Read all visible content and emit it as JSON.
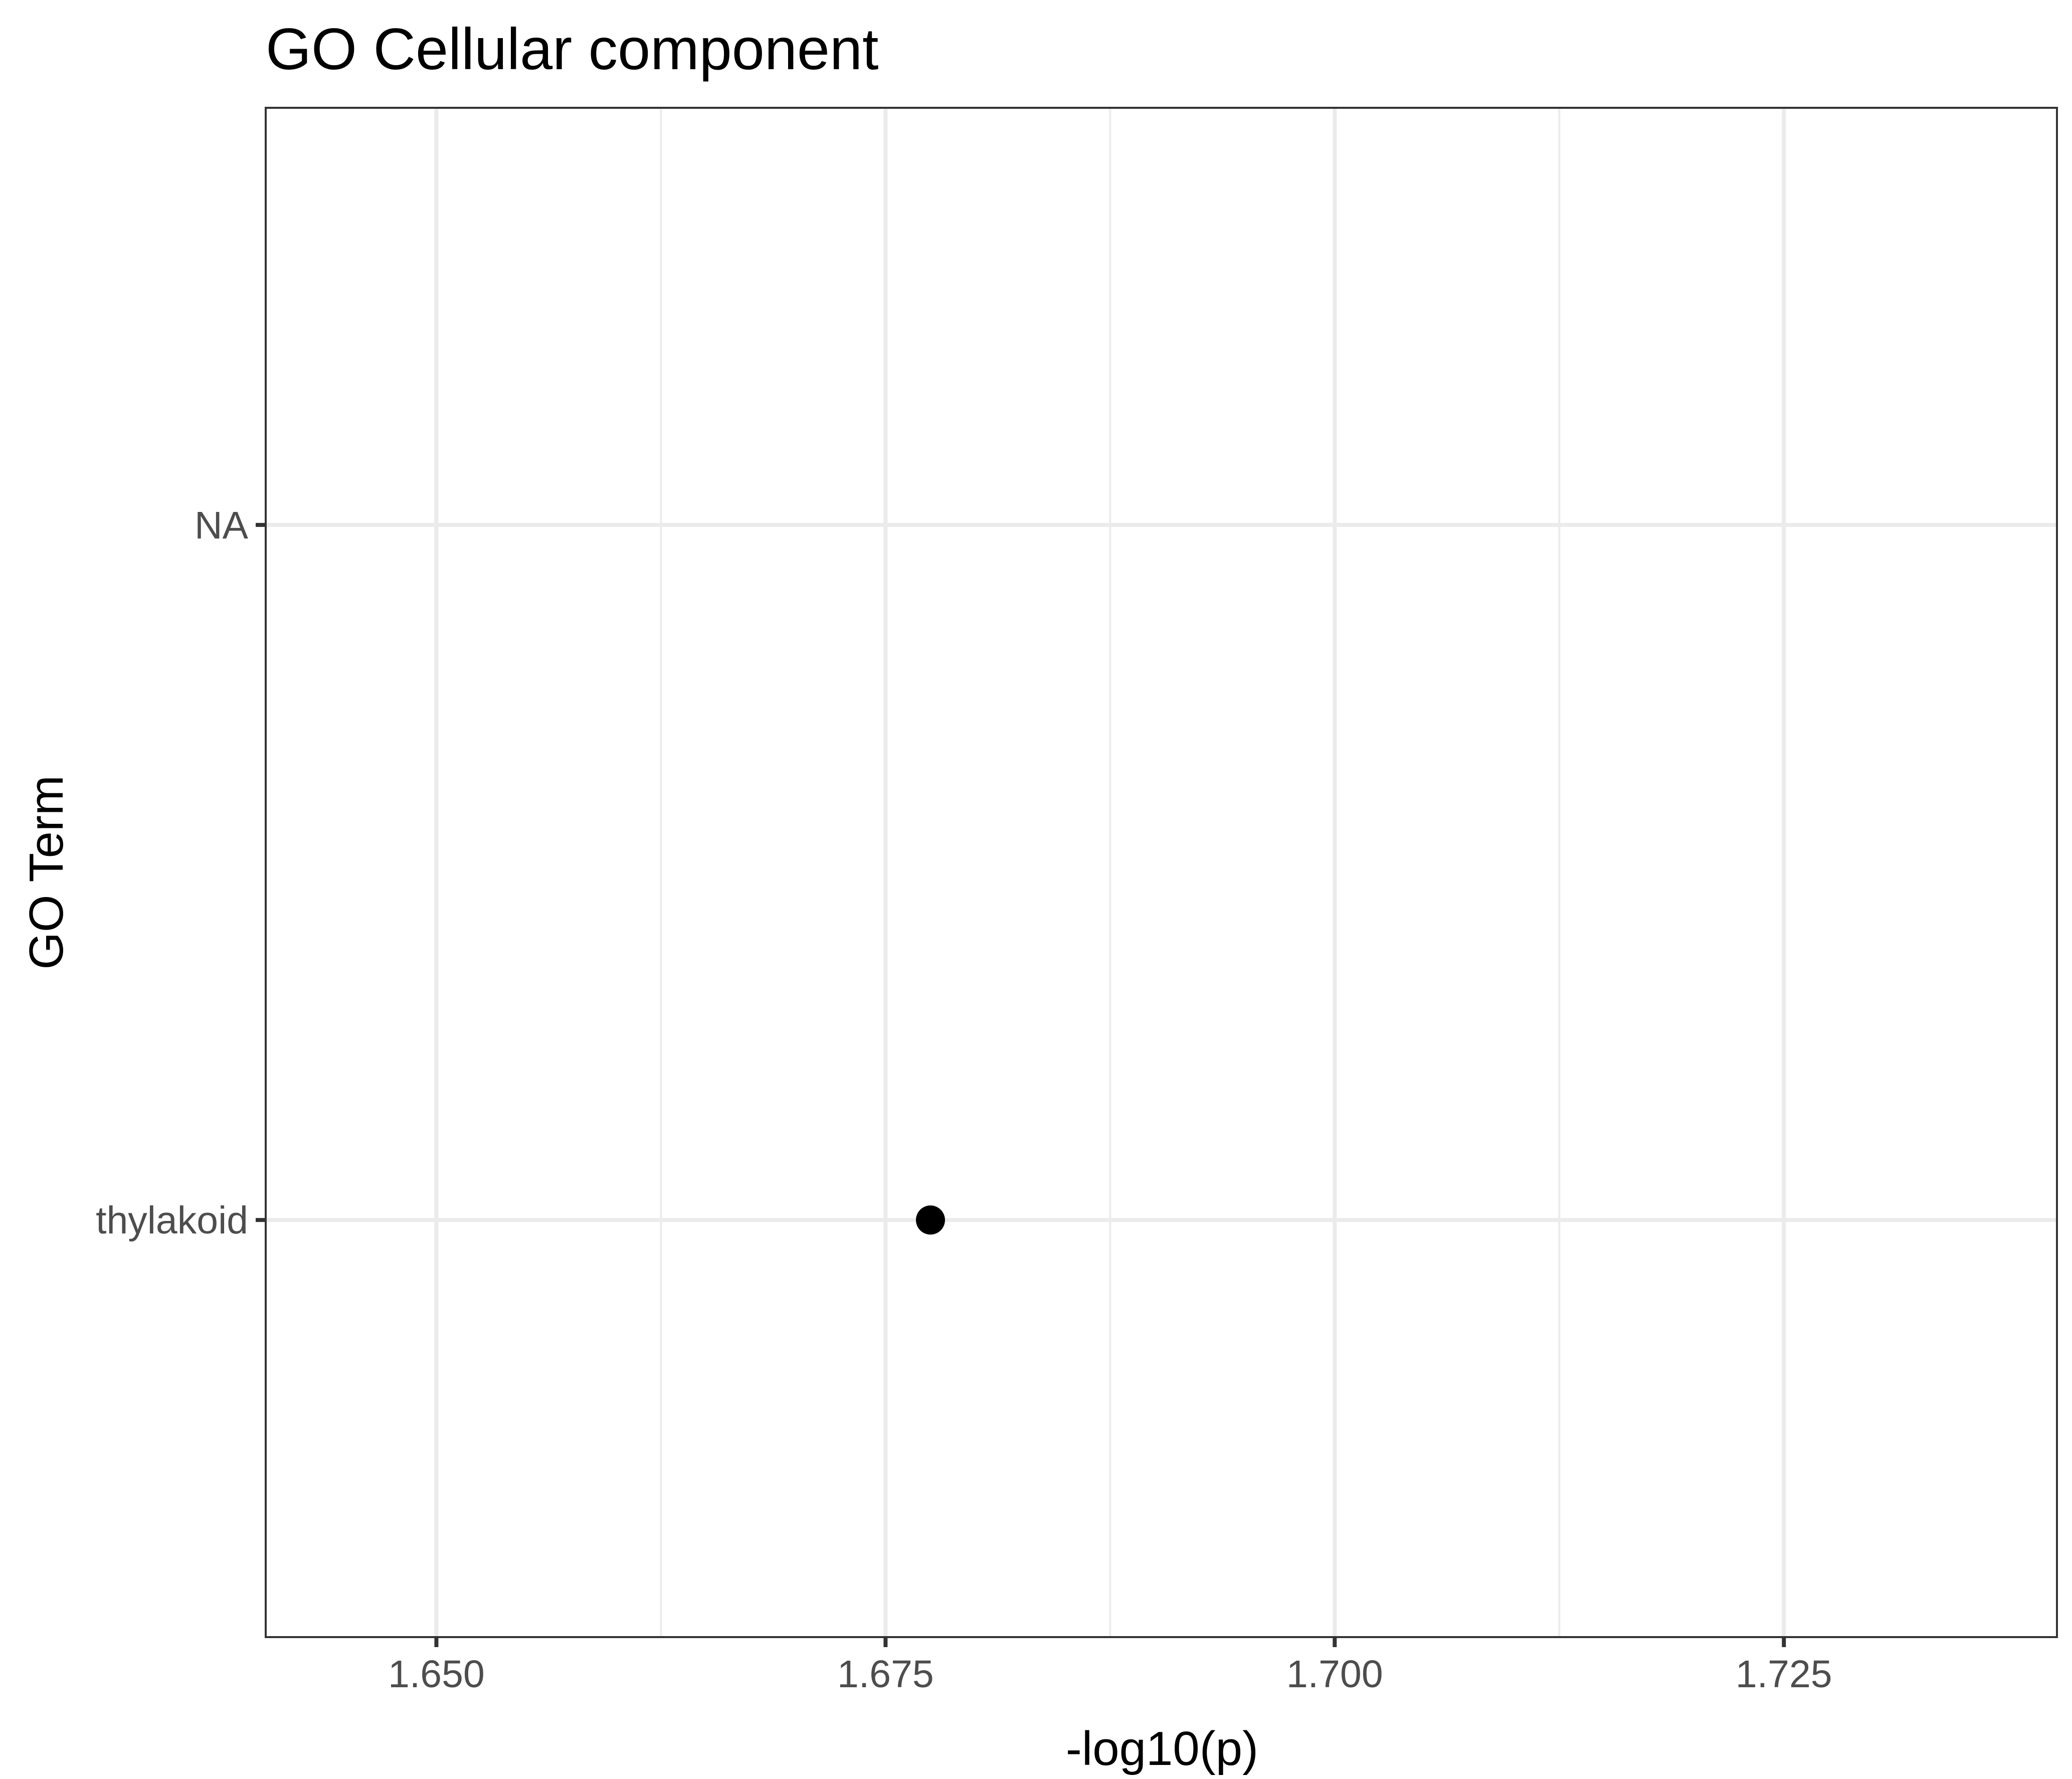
{
  "chart_data": {
    "type": "scatter",
    "title": "GO Cellular component",
    "xlabel": "-log10(p)",
    "ylabel": "GO Term",
    "categories": [
      "thylakoid",
      "NA"
    ],
    "x_ticks": [
      "1.650",
      "1.675",
      "1.700",
      "1.725"
    ],
    "x_tick_values": [
      1.65,
      1.675,
      1.7,
      1.725
    ],
    "xlim": [
      1.6405,
      1.7402
    ],
    "points": [
      {
        "category": "thylakoid",
        "x": 1.6775
      }
    ],
    "point_color": "#000000",
    "grid": true,
    "legend": "none"
  }
}
